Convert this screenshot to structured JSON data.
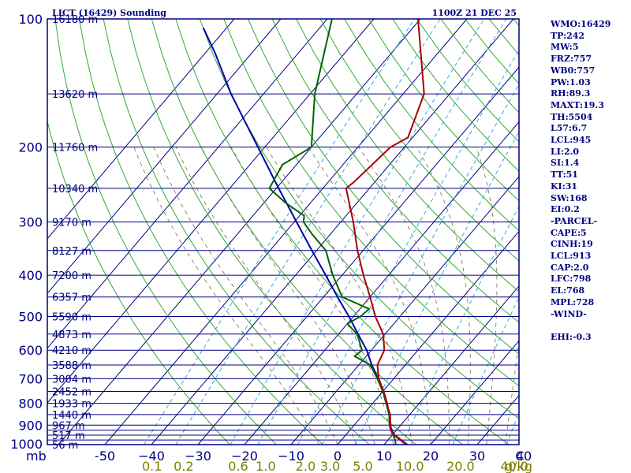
{
  "title_left": "LICT (16429) Sounding",
  "title_right": "1100Z 21 DEC 25",
  "indices": [
    "WMO:16429",
    "TP:242",
    "MW:5",
    "FRZ:757",
    "WB0:757",
    "PW:1.03",
    "RH:89.3",
    "MAXT:19.3",
    "TH:5504",
    "L57:6.7",
    "LCL:945",
    "LI:2.0",
    "SI:1.4",
    "TT:51",
    "KI:31",
    "SW:168",
    "EI:0.2",
    "-PARCEL-",
    "CAPE:5",
    "CINH:19",
    "LCL:913",
    "CAP:2.0",
    "LFC:798",
    "EL:768",
    "MPL:728",
    "-WIND-",
    "",
    "EHI:-0.3"
  ],
  "chart_data": {
    "type": "skew-t",
    "pressure_unit": "mb",
    "pressure_range": [
      100,
      1000
    ],
    "pressure_labels": [
      100,
      200,
      300,
      400,
      500,
      600,
      700,
      800,
      900,
      1000
    ],
    "isobars": [
      100,
      150,
      200,
      250,
      300,
      350,
      400,
      450,
      500,
      550,
      600,
      650,
      700,
      750,
      800,
      850,
      900,
      925,
      950,
      975,
      1000
    ],
    "height_labels": [
      {
        "p": 100,
        "text": "16180 m"
      },
      {
        "p": 150,
        "text": "13620 m"
      },
      {
        "p": 200,
        "text": "11760 m"
      },
      {
        "p": 250,
        "text": "10340 m"
      },
      {
        "p": 300,
        "text": "9170 m"
      },
      {
        "p": 350,
        "text": "8127 m"
      },
      {
        "p": 400,
        "text": "7200 m"
      },
      {
        "p": 450,
        "text": "6357 m"
      },
      {
        "p": 500,
        "text": "5590 m"
      },
      {
        "p": 550,
        "text": "4873 m"
      },
      {
        "p": 600,
        "text": "4210 m"
      },
      {
        "p": 650,
        "text": "3588 m"
      },
      {
        "p": 700,
        "text": "3004 m"
      },
      {
        "p": 750,
        "text": "2452 m"
      },
      {
        "p": 800,
        "text": "1933 m"
      },
      {
        "p": 850,
        "text": "1440 m"
      },
      {
        "p": 900,
        "text": "967 m"
      },
      {
        "p": 950,
        "text": "517 m"
      },
      {
        "p": 1000,
        "text": "56 m"
      }
    ],
    "temperature_unit": "C",
    "temperature_labels": [
      {
        "t": -50,
        "text": "-50"
      },
      {
        "t": -40,
        "text": "−40"
      },
      {
        "t": -30,
        "text": "−30"
      },
      {
        "t": -20,
        "text": "−20"
      },
      {
        "t": -10,
        "text": "−10"
      },
      {
        "t": 0,
        "text": "0"
      },
      {
        "t": 10,
        "text": "10"
      },
      {
        "t": 20,
        "text": "20"
      },
      {
        "t": 30,
        "text": "30"
      },
      {
        "t": 40,
        "text": "40"
      }
    ],
    "mixing_ratio_unit": "g/kg",
    "mixing_ratio_labels": [
      "0.1",
      "0.2",
      "0.6",
      "1.0",
      "2.0",
      "3.0",
      "5.0",
      "10.0",
      "20.0",
      "40.0"
    ],
    "isotherms": [
      -100,
      -90,
      -80,
      -70,
      -60,
      -50,
      -40,
      -30,
      -20,
      -10,
      0,
      10,
      20,
      30,
      40
    ],
    "dry_adiabats_K": [
      250,
      260,
      270,
      280,
      290,
      300,
      310,
      320,
      330,
      340,
      350,
      360,
      370,
      380,
      390,
      400,
      410,
      420,
      430,
      440,
      450
    ],
    "moist_adiabats_C": [
      -4,
      0,
      4,
      8,
      12,
      16,
      20,
      24,
      28,
      32,
      36
    ],
    "mixing_ratio_lines": [
      0.1,
      0.2,
      0.6,
      1,
      2,
      3,
      5,
      10,
      20,
      40
    ],
    "temperature_profile": [
      {
        "p": 1000,
        "t": 15.0
      },
      {
        "p": 975,
        "t": 12.8
      },
      {
        "p": 950,
        "t": 10.6
      },
      {
        "p": 925,
        "t": 8.8
      },
      {
        "p": 900,
        "t": 7.8
      },
      {
        "p": 850,
        "t": 5.8
      },
      {
        "p": 800,
        "t": 3.0
      },
      {
        "p": 750,
        "t": 0.2
      },
      {
        "p": 700,
        "t": -3.2
      },
      {
        "p": 650,
        "t": -6.0
      },
      {
        "p": 600,
        "t": -7.2
      },
      {
        "p": 550,
        "t": -10.4
      },
      {
        "p": 500,
        "t": -15.3
      },
      {
        "p": 450,
        "t": -20.0
      },
      {
        "p": 400,
        "t": -25.4
      },
      {
        "p": 350,
        "t": -31.2
      },
      {
        "p": 300,
        "t": -37.3
      },
      {
        "p": 250,
        "t": -45.0
      },
      {
        "p": 242,
        "t": -44.5
      },
      {
        "p": 200,
        "t": -43.0
      },
      {
        "p": 190,
        "t": -41.0
      },
      {
        "p": 150,
        "t": -45.5
      },
      {
        "p": 100,
        "t": -60.5
      }
    ],
    "dewpoint_profile": [
      {
        "p": 1000,
        "t": 12.5
      },
      {
        "p": 975,
        "t": 11.5
      },
      {
        "p": 950,
        "t": 10.2
      },
      {
        "p": 925,
        "t": 8.8
      },
      {
        "p": 900,
        "t": 7.6
      },
      {
        "p": 850,
        "t": 5.6
      },
      {
        "p": 800,
        "t": 2.9
      },
      {
        "p": 750,
        "t": 0.0
      },
      {
        "p": 700,
        "t": -3.5
      },
      {
        "p": 650,
        "t": -7.5
      },
      {
        "p": 620,
        "t": -12.5
      },
      {
        "p": 600,
        "t": -12.0
      },
      {
        "p": 550,
        "t": -16.0
      },
      {
        "p": 520,
        "t": -20.0
      },
      {
        "p": 500,
        "t": -18.5
      },
      {
        "p": 480,
        "t": -18.0
      },
      {
        "p": 450,
        "t": -26.0
      },
      {
        "p": 400,
        "t": -32.0
      },
      {
        "p": 350,
        "t": -38.0
      },
      {
        "p": 320,
        "t": -44.0
      },
      {
        "p": 300,
        "t": -48.0
      },
      {
        "p": 290,
        "t": -49.0
      },
      {
        "p": 270,
        "t": -55.5
      },
      {
        "p": 250,
        "t": -61.5
      },
      {
        "p": 220,
        "t": -63.0
      },
      {
        "p": 200,
        "t": -60.0
      },
      {
        "p": 150,
        "t": -69.0
      },
      {
        "p": 100,
        "t": -79.0
      }
    ],
    "parcel_profile": [
      {
        "p": 1000,
        "t": 14.8
      },
      {
        "p": 950,
        "t": 10.4
      },
      {
        "p": 913,
        "t": 8.4
      },
      {
        "p": 900,
        "t": 7.8
      },
      {
        "p": 850,
        "t": 5.6
      },
      {
        "p": 800,
        "t": 3.1
      },
      {
        "p": 750,
        "t": 0.2
      },
      {
        "p": 700,
        "t": -3.3
      },
      {
        "p": 650,
        "t": -7.2
      },
      {
        "p": 600,
        "t": -11.0
      },
      {
        "p": 550,
        "t": -15.8
      },
      {
        "p": 500,
        "t": -21.0
      },
      {
        "p": 450,
        "t": -27.0
      },
      {
        "p": 400,
        "t": -33.5
      },
      {
        "p": 350,
        "t": -41.0
      },
      {
        "p": 300,
        "t": -49.5
      },
      {
        "p": 250,
        "t": -59.5
      },
      {
        "p": 200,
        "t": -71.5
      },
      {
        "p": 150,
        "t": -87.0
      },
      {
        "p": 120,
        "t": -98.0
      },
      {
        "p": 105,
        "t": -105.0
      }
    ]
  }
}
